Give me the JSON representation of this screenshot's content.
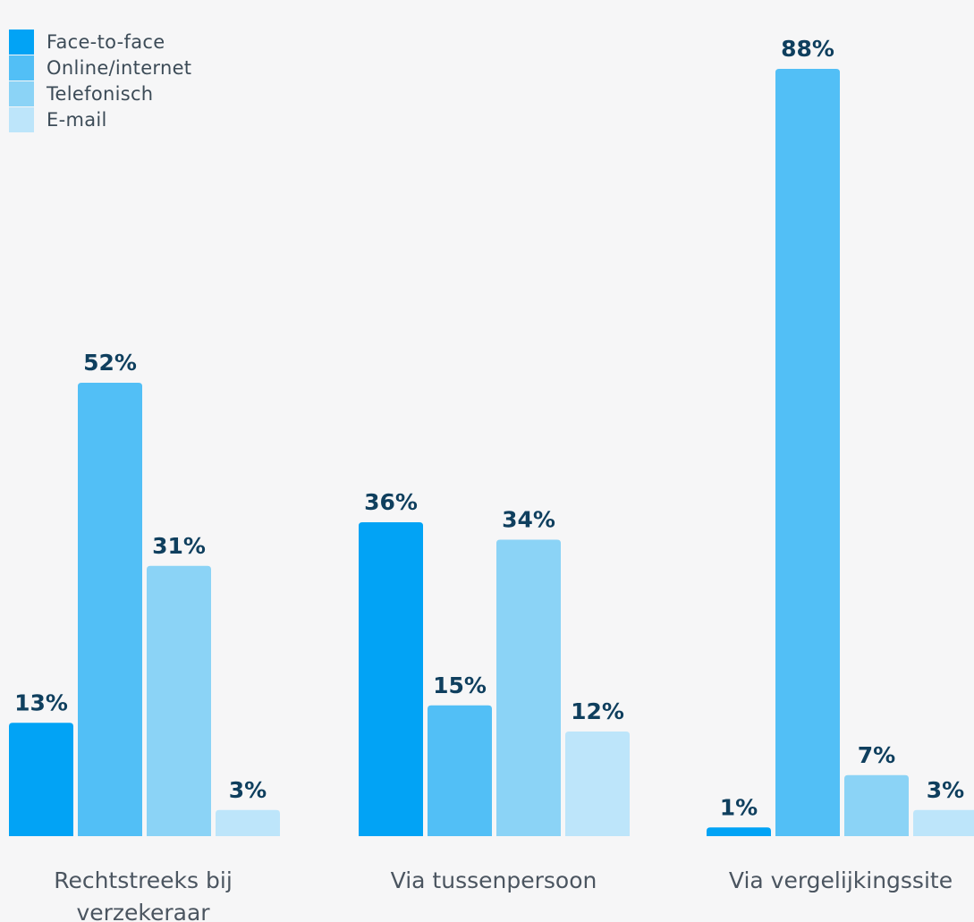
{
  "chart_data": {
    "type": "bar",
    "categories": [
      [
        "Rechtstreeks bij",
        "verzekeraar"
      ],
      [
        "Via tussenpersoon"
      ],
      [
        "Via vergelijkingssite"
      ]
    ],
    "series": [
      {
        "name": "Face-to-face",
        "color": "#02a3f5",
        "values": [
          13,
          36,
          1
        ]
      },
      {
        "name": "Online/internet",
        "color": "#52bff6",
        "values": [
          52,
          15,
          88
        ]
      },
      {
        "name": "Telefonisch",
        "color": "#8bd3f6",
        "values": [
          31,
          34,
          7
        ]
      },
      {
        "name": "E-mail",
        "color": "#bde5fa",
        "values": [
          3,
          12,
          3
        ]
      }
    ],
    "value_suffix": "%",
    "ylim": [
      0,
      100
    ],
    "legend_position": "top-left",
    "grid": false
  }
}
